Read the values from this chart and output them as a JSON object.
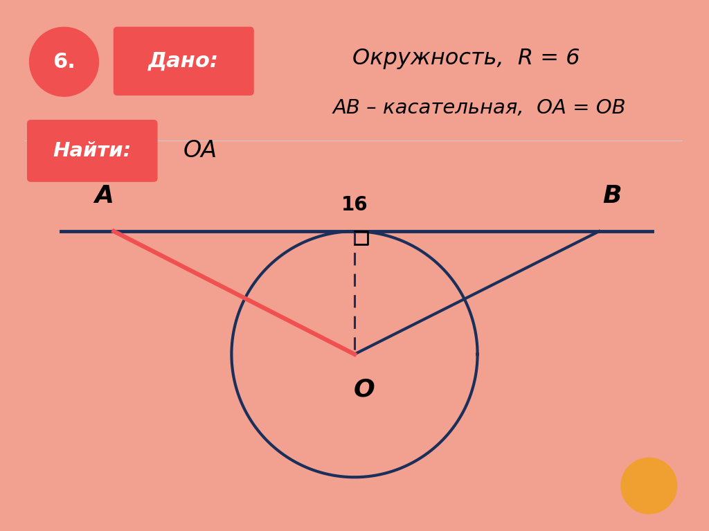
{
  "bg_color": "#ffffff",
  "border_color": "#f2a090",
  "dark_blue": "#1a2f5a",
  "red_color": "#f05050",
  "orange_color": "#f0a030",
  "dado_text": "Дано:",
  "line1": "Окружность,  R = 6",
  "line2": "AB – касательная,  OA = OB",
  "naiti_text": "Найти:",
  "naiti_answer": "OA",
  "label_16": "16",
  "label_A": "A",
  "label_B": "B",
  "label_O": "O",
  "num_label": "6."
}
